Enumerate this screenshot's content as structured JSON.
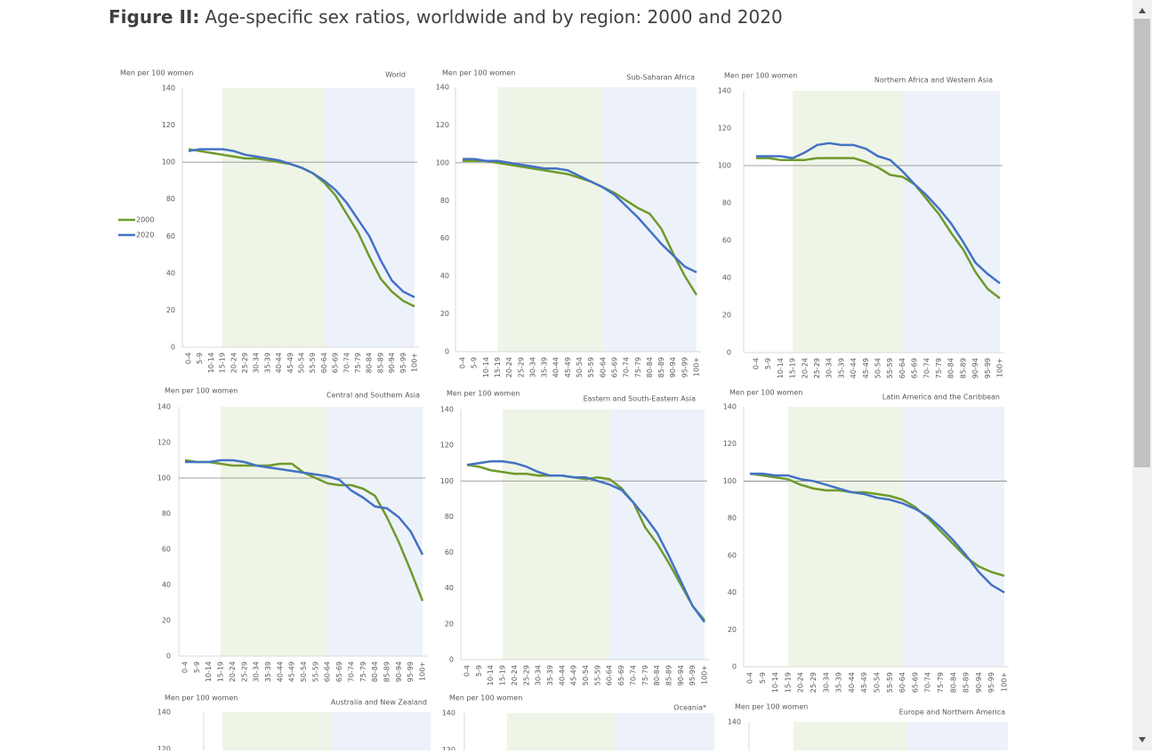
{
  "figure": {
    "label": "Figure II:",
    "title": "Age-specific sex ratios, worldwide and by region: 2000 and 2020"
  },
  "chart_data": [
    {
      "type": "line",
      "title": "World",
      "y_label": "Men per 100 women",
      "categories": [
        "0-4",
        "5-9",
        "10-14",
        "15-19",
        "20-24",
        "25-29",
        "30-34",
        "35-39",
        "40-44",
        "45-49",
        "50-54",
        "55-59",
        "60-64",
        "65-69",
        "70-74",
        "75-79",
        "80-84",
        "85-89",
        "90-94",
        "95-99",
        "100+"
      ],
      "ylim": [
        0,
        140
      ],
      "yticks": [
        0,
        20,
        40,
        60,
        80,
        100,
        120,
        140
      ],
      "reference_line": 100,
      "legend": "left",
      "shaded_spans": [
        {
          "from": "15-19",
          "to": "60-64",
          "color": "#eef5e6"
        },
        {
          "from": "60-64",
          "to": "100+",
          "color": "#edf2fa"
        }
      ],
      "series": [
        {
          "name": "2000",
          "color": "#6f9a2c",
          "values": [
            107,
            106,
            105,
            104,
            103,
            102,
            102,
            101,
            100,
            99,
            97,
            94,
            89,
            82,
            72,
            62,
            49,
            37,
            30,
            25,
            22
          ]
        },
        {
          "name": "2020",
          "color": "#4472c4",
          "values": [
            106,
            107,
            107,
            107,
            106,
            104,
            103,
            102,
            101,
            99,
            97,
            94,
            90,
            85,
            78,
            69,
            60,
            47,
            36,
            30,
            27
          ]
        }
      ]
    },
    {
      "type": "line",
      "title": "Sub-Saharan Africa",
      "y_label": "Men per 100 women",
      "categories": [
        "0-4",
        "5-9",
        "10-14",
        "15-19",
        "20-24",
        "25-29",
        "30-34",
        "35-39",
        "40-44",
        "45-49",
        "50-54",
        "55-59",
        "60-64",
        "65-69",
        "70-74",
        "75-79",
        "80-84",
        "85-89",
        "90-94",
        "95-99",
        "100+"
      ],
      "ylim": [
        0,
        140
      ],
      "yticks": [
        0,
        20,
        40,
        60,
        80,
        100,
        120,
        140
      ],
      "reference_line": 100,
      "shaded_spans": [
        {
          "from": "15-19",
          "to": "60-64",
          "color": "#eef5e6"
        },
        {
          "from": "60-64",
          "to": "100+",
          "color": "#edf2fa"
        }
      ],
      "series": [
        {
          "color": "#6f9a2c",
          "values": [
            101,
            101,
            101,
            100,
            99,
            98,
            97,
            96,
            95,
            94,
            92,
            90,
            87,
            84,
            80,
            76,
            73,
            65,
            52,
            40,
            30
          ]
        },
        {
          "color": "#4472c4",
          "values": [
            102,
            102,
            101,
            101,
            100,
            99,
            98,
            97,
            97,
            96,
            93,
            90,
            87,
            83,
            77,
            71,
            64,
            57,
            51,
            45,
            42
          ]
        }
      ]
    },
    {
      "type": "line",
      "title": "Northern Africa and Western Asia",
      "y_label": "Men per 100 women",
      "categories": [
        "0-4",
        "5-9",
        "10-14",
        "15-19",
        "20-24",
        "25-29",
        "30-34",
        "35-39",
        "40-44",
        "45-49",
        "50-54",
        "55-59",
        "60-64",
        "65-69",
        "70-74",
        "75-79",
        "80-84",
        "85-89",
        "90-94",
        "95-99",
        "100+"
      ],
      "ylim": [
        0,
        140
      ],
      "yticks": [
        0,
        20,
        40,
        60,
        80,
        100,
        120,
        140
      ],
      "reference_line": 100,
      "shaded_spans": [
        {
          "from": "15-19",
          "to": "60-64",
          "color": "#eef5e6"
        },
        {
          "from": "60-64",
          "to": "100+",
          "color": "#edf2fa"
        }
      ],
      "series": [
        {
          "color": "#6f9a2c",
          "values": [
            104,
            104,
            103,
            103,
            103,
            104,
            104,
            104,
            104,
            102,
            99,
            95,
            94,
            90,
            82,
            74,
            64,
            55,
            43,
            34,
            29
          ]
        },
        {
          "color": "#4472c4",
          "values": [
            105,
            105,
            105,
            104,
            107,
            111,
            112,
            111,
            111,
            109,
            105,
            103,
            97,
            90,
            84,
            77,
            69,
            59,
            48,
            42,
            37
          ]
        }
      ]
    },
    {
      "type": "line",
      "title": "Central and Southern Asia",
      "y_label": "Men per 100 women",
      "categories": [
        "0-4",
        "5-9",
        "10-14",
        "15-19",
        "20-24",
        "25-29",
        "30-34",
        "35-39",
        "40-44",
        "45-49",
        "50-54",
        "55-59",
        "60-64",
        "65-69",
        "70-74",
        "75-79",
        "80-84",
        "85-89",
        "90-94",
        "95-99",
        "100+"
      ],
      "ylim": [
        0,
        140
      ],
      "yticks": [
        0,
        20,
        40,
        60,
        80,
        100,
        120,
        140
      ],
      "reference_line": 100,
      "shaded_spans": [
        {
          "from": "15-19",
          "to": "60-64",
          "color": "#eef5e6"
        },
        {
          "from": "60-64",
          "to": "100+",
          "color": "#edf2fa"
        }
      ],
      "series": [
        {
          "color": "#6f9a2c",
          "values": [
            110,
            109,
            109,
            108,
            107,
            107,
            107,
            107,
            108,
            108,
            103,
            100,
            97,
            96,
            96,
            94,
            90,
            78,
            64,
            48,
            31
          ]
        },
        {
          "color": "#4472c4",
          "values": [
            109,
            109,
            109,
            110,
            110,
            109,
            107,
            106,
            105,
            104,
            103,
            102,
            101,
            99,
            93,
            89,
            84,
            83,
            78,
            70,
            57
          ]
        }
      ]
    },
    {
      "type": "line",
      "title": "Eastern and South-Eastern Asia",
      "y_label": "Men per 100 women",
      "categories": [
        "0-4",
        "5-9",
        "10-14",
        "15-19",
        "20-24",
        "25-29",
        "30-34",
        "35-39",
        "40-44",
        "45-49",
        "50-54",
        "55-59",
        "60-64",
        "65-69",
        "70-74",
        "75-79",
        "80-84",
        "85-89",
        "90-94",
        "95-99",
        "100+"
      ],
      "ylim": [
        0,
        140
      ],
      "yticks": [
        0,
        20,
        40,
        60,
        80,
        100,
        120,
        140
      ],
      "reference_line": 100,
      "shaded_spans": [
        {
          "from": "15-19",
          "to": "60-64",
          "color": "#eef5e6"
        },
        {
          "from": "60-64",
          "to": "100+",
          "color": "#edf2fa"
        }
      ],
      "series": [
        {
          "color": "#6f9a2c",
          "values": [
            109,
            108,
            106,
            105,
            104,
            104,
            103,
            103,
            103,
            102,
            101,
            102,
            101,
            96,
            88,
            74,
            65,
            54,
            42,
            30,
            22
          ]
        },
        {
          "color": "#4472c4",
          "values": [
            109,
            110,
            111,
            111,
            110,
            108,
            105,
            103,
            103,
            102,
            102,
            100,
            98,
            95,
            88,
            80,
            71,
            58,
            44,
            30,
            21
          ]
        }
      ]
    },
    {
      "type": "line",
      "title": "Latin America and the Caribbean",
      "y_label": "Men per 100 women",
      "categories": [
        "0-4",
        "5-9",
        "10-14",
        "15-19",
        "20-24",
        "25-29",
        "30-34",
        "35-39",
        "40-44",
        "45-49",
        "50-54",
        "55-59",
        "60-64",
        "65-69",
        "70-74",
        "75-79",
        "80-84",
        "85-89",
        "90-94",
        "95-99",
        "100+"
      ],
      "ylim": [
        0,
        140
      ],
      "yticks": [
        0,
        20,
        40,
        60,
        80,
        100,
        120,
        140
      ],
      "reference_line": 100,
      "shaded_spans": [
        {
          "from": "15-19",
          "to": "60-64",
          "color": "#eef5e6"
        },
        {
          "from": "60-64",
          "to": "100+",
          "color": "#edf2fa"
        }
      ],
      "series": [
        {
          "color": "#6f9a2c",
          "values": [
            104,
            103,
            102,
            101,
            98,
            96,
            95,
            95,
            94,
            94,
            93,
            92,
            90,
            86,
            80,
            73,
            66,
            59,
            54,
            51,
            49
          ]
        },
        {
          "color": "#4472c4",
          "values": [
            104,
            104,
            103,
            103,
            101,
            100,
            98,
            96,
            94,
            93,
            91,
            90,
            88,
            85,
            81,
            75,
            68,
            60,
            51,
            44,
            40
          ]
        }
      ]
    },
    {
      "type": "line",
      "title": "Australia and New Zealand",
      "y_label": "Men per 100 women",
      "ylim": [
        0,
        140
      ],
      "yticks": [
        120,
        140
      ]
    },
    {
      "type": "line",
      "title": "Oceania*",
      "y_label": "Men per 100 women",
      "ylim": [
        0,
        140
      ],
      "yticks": [
        120,
        140
      ]
    },
    {
      "type": "line",
      "title": "Europe and Northern America",
      "y_label": "Men per 100 women",
      "ylim": [
        0,
        140
      ],
      "yticks": [
        140
      ]
    }
  ]
}
